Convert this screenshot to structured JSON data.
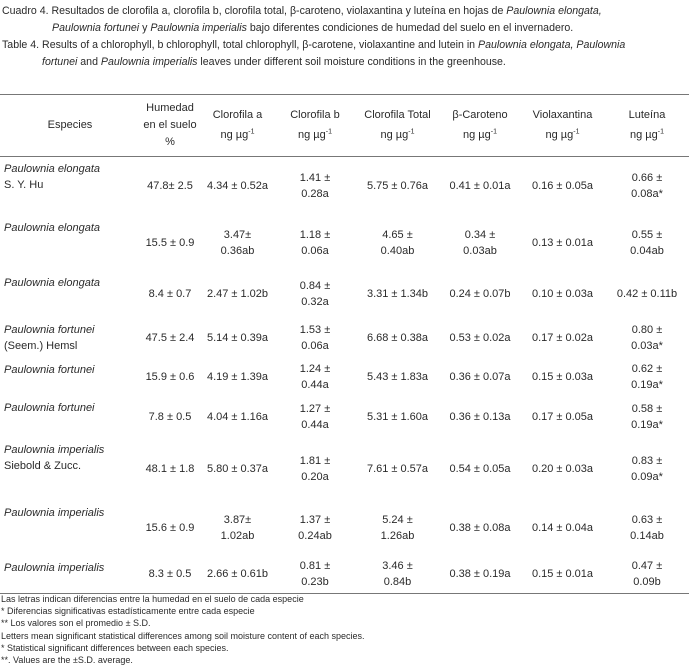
{
  "caption": {
    "es_line1_prefix": "Cuadro 4. Resultados de clorofila a, clorofila b, clorofila total, β-caroteno, violaxantina y luteína en hojas de ",
    "es_line1_italic": "Paulownia elongata,",
    "es_line2_italic1": "Paulownia fortunei",
    "es_line2_mid": " y ",
    "es_line2_italic2": "Paulownia imperialis",
    "es_line2_rest": " bajo diferentes condiciones de humedad del suelo en el invernadero.",
    "en_line1_prefix": "Table 4. Results of a chlorophyll, b chlorophyll, total chlorophyll, β-carotene, violaxantine and lutein in ",
    "en_line1_italic1": "Paulownia elongata, Paulownia",
    "en_line2_italic1": "fortunei",
    "en_line2_mid": " and ",
    "en_line2_italic2": "Paulownia imperialis",
    "en_line2_rest": " leaves under different soil moisture conditions in the greenhouse."
  },
  "table": {
    "headers": [
      {
        "label": "Especies",
        "unit": ""
      },
      {
        "label": "Humedad\nen el suelo\n%",
        "unit": ""
      },
      {
        "label": "Clorofila a",
        "unit": "ng µg"
      },
      {
        "label": "Clorofila b",
        "unit": "ng µg"
      },
      {
        "label": "Clorofila Total",
        "unit": "ng µg"
      },
      {
        "label": "β-Caroteno",
        "unit": "ng µg"
      },
      {
        "label": "Violaxantina",
        "unit": "ng µg"
      },
      {
        "label": "Luteína",
        "unit": "ng µg"
      }
    ],
    "unit_exponent": "-1",
    "rows": [
      {
        "species": "Paulownia elongata",
        "author": "S. Y. Hu",
        "cells": [
          "47.8± 2.5",
          "4.34 ± 0.52a",
          "1.41 ±\n0.28a",
          "5.75 ± 0.76a",
          "0.41 ± 0.01a",
          "0.16 ± 0.05a",
          "0.66 ±\n0.08a*"
        ]
      },
      {
        "species": "Paulownia elongata",
        "author": "",
        "cells": [
          "15.5 ± 0.9",
          "3.47±\n0.36ab",
          "1.18 ±\n0.06a",
          "4.65 ±\n0.40ab",
          "0.34 ±\n0.03ab",
          "0.13 ± 0.01a",
          "0.55 ±\n0.04ab"
        ]
      },
      {
        "species": "Paulownia elongata",
        "author": "",
        "cells": [
          "8.4 ± 0.7",
          "2.47 ± 1.02b",
          "0.84 ±\n0.32a",
          "3.31 ± 1.34b",
          "0.24 ± 0.07b",
          "0.10 ± 0.03a",
          "0.42 ± 0.11b"
        ]
      },
      {
        "species": "Paulownia fortunei",
        "author": "(Seem.) Hemsl",
        "cells": [
          "47.5 ± 2.4",
          "5.14 ± 0.39a",
          "1.53 ±\n0.06a",
          "6.68 ± 0.38a",
          "0.53 ± 0.02a",
          "0.17 ± 0.02a",
          "0.80 ±\n0.03a*"
        ]
      },
      {
        "species": "Paulownia fortunei",
        "author": "",
        "cells": [
          "15.9 ± 0.6",
          "4.19 ± 1.39a",
          "1.24 ±\n0.44a",
          "5.43 ± 1.83a",
          "0.36 ± 0.07a",
          "0.15 ± 0.03a",
          "0.62 ±\n0.19a*"
        ]
      },
      {
        "species": "Paulownia fortunei",
        "author": "",
        "cells": [
          "7.8 ± 0.5",
          "4.04 ± 1.16a",
          "1.27 ±\n0.44a",
          "5.31 ± 1.60a",
          "0.36 ± 0.13a",
          "0.17 ± 0.05a",
          "0.58 ±\n0.19a*"
        ]
      },
      {
        "species": "Paulownia imperialis",
        "author": "Siebold & Zucc.",
        "cells": [
          "48.1 ± 1.8",
          "5.80 ± 0.37a",
          "1.81 ±\n0.20a",
          "7.61 ± 0.57a",
          "0.54 ± 0.05a",
          "0.20 ± 0.03a",
          "0.83 ±\n0.09a*"
        ]
      },
      {
        "species": "Paulownia imperialis",
        "author": "",
        "cells": [
          "15.6 ± 0.9",
          "3.87±\n1.02ab",
          "1.37 ±\n0.24ab",
          "5.24 ±\n1.26ab",
          "0.38 ± 0.08a",
          "0.14 ± 0.04a",
          "0.63 ±\n0.14ab"
        ]
      },
      {
        "species": "Paulownia imperialis",
        "author": "",
        "cells": [
          "8.3 ± 0.5",
          "2.66 ± 0.61b",
          "0.81 ±\n0.23b",
          "3.46 ±\n0.84b",
          "0.38 ± 0.19a",
          "0.15 ± 0.01a",
          "0.47 ±\n0.09b"
        ]
      }
    ]
  },
  "notes": [
    "Las letras indican diferencias entre la humedad en el suelo de cada especie",
    "* Diferencias significativas estadísticamente entre cada especie",
    "** Los valores son el promedio ± S.D.",
    "Letters mean significant statistical differences among soil moisture content of each species.",
    "* Statistical significant differences between each species.",
    "**. Values are the ±S.D. average."
  ]
}
